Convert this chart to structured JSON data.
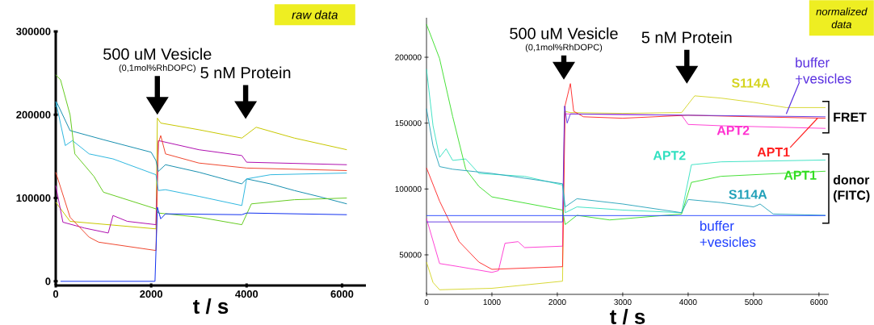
{
  "chart_data": [
    {
      "type": "line",
      "xlabel": "t / s",
      "xlim": [
        0,
        6500
      ],
      "ylim": [
        -5000,
        300000
      ],
      "xticks": [
        0,
        2000,
        4000,
        6000
      ],
      "yticks": [
        0,
        100000,
        200000,
        300000
      ],
      "annotations": [
        "500 uM Vesicle",
        "(0,1mol%RhDOPC)",
        "5 nM Protein",
        "raw data"
      ],
      "series": [
        {
          "color": "#c8c800",
          "x": [
            0,
            300,
            2100,
            2130,
            2200,
            3000,
            3900,
            4200,
            5000,
            6100
          ],
          "values": [
            95000,
            72000,
            63000,
            196000,
            190000,
            182000,
            172000,
            185000,
            172000,
            158000
          ]
        },
        {
          "color": "#b010b0",
          "x": [
            0,
            150,
            600,
            1100,
            1200,
            1500,
            2100,
            2150,
            3000,
            3900,
            4000,
            6100
          ],
          "values": [
            115000,
            71000,
            64000,
            58000,
            79000,
            72000,
            68000,
            169000,
            158000,
            151000,
            143000,
            140000
          ]
        },
        {
          "color": "#f04830",
          "x": [
            0,
            300,
            700,
            900,
            2100,
            2150,
            2200,
            2300,
            3000,
            4000,
            6100
          ],
          "values": [
            131000,
            77000,
            53000,
            47000,
            37000,
            166000,
            175000,
            153000,
            142000,
            136000,
            133000
          ]
        },
        {
          "color": "#1890b0",
          "x": [
            0,
            20,
            300,
            1000,
            2000,
            2100,
            2150,
            2300,
            3000,
            3900,
            4000,
            4500,
            5000,
            5500,
            6100
          ],
          "values": [
            209000,
            215000,
            181000,
            170000,
            155000,
            145000,
            132000,
            140000,
            131000,
            117000,
            123000,
            117000,
            109000,
            102000,
            93000
          ]
        },
        {
          "color": "#30b8e0",
          "x": [
            0,
            200,
            350,
            700,
            1200,
            2100,
            2150,
            2300,
            3000,
            3900,
            4000,
            4500,
            6100
          ],
          "values": [
            216000,
            163000,
            169000,
            153000,
            147000,
            128000,
            109000,
            110000,
            102000,
            91000,
            123000,
            128000,
            130000
          ]
        },
        {
          "color": "#66cc22",
          "x": [
            0,
            100,
            300,
            400,
            800,
            1000,
            2100,
            2150,
            3000,
            3900,
            4100,
            5000,
            6100
          ],
          "values": [
            248000,
            242000,
            200000,
            153000,
            126000,
            107000,
            87000,
            82000,
            77000,
            68000,
            93000,
            98000,
            100000
          ]
        },
        {
          "color": "#1030f0",
          "x": [
            100,
            2080,
            2130,
            2200,
            2300,
            3900,
            4000,
            6100
          ],
          "values": [
            0,
            0,
            89000,
            75000,
            81000,
            80000,
            82000,
            80000
          ]
        }
      ]
    },
    {
      "type": "line",
      "xlabel": "t / s",
      "xlim": [
        0,
        6150
      ],
      "ylim": [
        20000,
        230000
      ],
      "xticks": [
        0,
        1000,
        2000,
        3000,
        4000,
        5000,
        6000
      ],
      "yticks": [
        50000,
        100000,
        150000,
        200000
      ],
      "annotations": [
        "500 uM Vesicle",
        "(0,1mol%RhDOPC)",
        "5 nM Protein",
        "normalized data",
        "FRET",
        "donor (FITC)"
      ],
      "series": [
        {
          "name": "S114A",
          "color": "#d4d420",
          "x": [
            0,
            100,
            200,
            1000,
            2080,
            2110,
            2200,
            3000,
            3900,
            4100,
            4500,
            5000,
            5500,
            6100
          ],
          "values": [
            44500,
            29000,
            23500,
            24600,
            30000,
            159000,
            158000,
            157400,
            158000,
            170700,
            169000,
            165800,
            161800,
            161800
          ]
        },
        {
          "name": "APT2",
          "color": "#ff30d0",
          "x": [
            0,
            200,
            500,
            1000,
            1100,
            1200,
            1400,
            1500,
            2080,
            2110,
            3900,
            4000,
            4500,
            6100
          ],
          "values": [
            77600,
            43400,
            41000,
            36700,
            38000,
            58800,
            60000,
            55500,
            56600,
            157000,
            156000,
            149000,
            148000,
            146000
          ]
        },
        {
          "name": "APT1",
          "color": "#ff2020",
          "x": [
            0,
            200,
            500,
            800,
            1000,
            2080,
            2120,
            2200,
            2250,
            2400,
            3000,
            4000,
            5000,
            6100
          ],
          "values": [
            116000,
            90800,
            60000,
            44500,
            39000,
            41000,
            163600,
            180000,
            159000,
            154800,
            153700,
            156000,
            154800,
            153700
          ]
        },
        {
          "name": "buffer +vesicles",
          "color": "#5a30e0",
          "x": [
            0,
            2080,
            2110,
            2150,
            2200,
            6100
          ],
          "values": [
            75000,
            75000,
            163000,
            150000,
            157000,
            154800
          ]
        },
        {
          "name": "APT2",
          "color": "#30e0c0",
          "x": [
            0,
            100,
            200,
            300,
            400,
            600,
            800,
            1500,
            2080,
            2120,
            2300,
            3000,
            3900,
            4050,
            4500,
            6100
          ],
          "values": [
            191000,
            148000,
            124000,
            130500,
            121700,
            122800,
            111800,
            109600,
            103000,
            82000,
            86400,
            84000,
            82000,
            118400,
            120600,
            122000
          ]
        },
        {
          "name": "APT1",
          "color": "#33dd22",
          "x": [
            0,
            200,
            400,
            600,
            800,
            1000,
            2080,
            2120,
            2300,
            2800,
            3900,
            4050,
            4500,
            6100
          ],
          "values": [
            225000,
            199000,
            155000,
            115000,
            102000,
            94000,
            84000,
            73000,
            80000,
            76500,
            81000,
            105000,
            109600,
            113500
          ]
        },
        {
          "name": "S114A",
          "color": "#20a0b8",
          "x": [
            0,
            100,
            200,
            400,
            1000,
            2080,
            2120,
            2300,
            3000,
            3900,
            4000,
            4500,
            5000,
            5100,
            5300,
            6100
          ],
          "values": [
            161000,
            132700,
            117000,
            115000,
            111800,
            104000,
            86400,
            92600,
            88600,
            82000,
            92000,
            89700,
            86400,
            88600,
            81000,
            80000
          ]
        },
        {
          "name": "buffer +vesicles",
          "color": "#2040ff",
          "x": [
            0,
            6100
          ],
          "values": [
            79800,
            79800
          ]
        }
      ]
    }
  ]
}
